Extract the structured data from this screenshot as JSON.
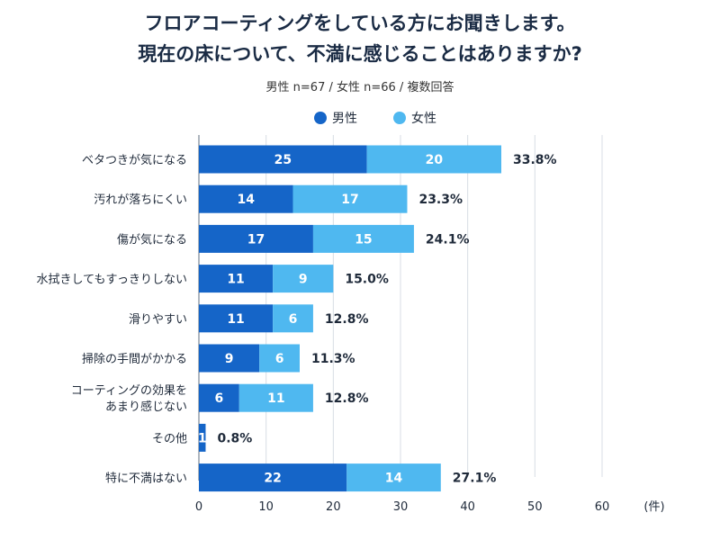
{
  "title_line1": "フロアコーティングをしている方にお聞きします。",
  "title_line2": "現在の床について、不満に感じることはありますか?",
  "subtitle": "男性 n=67 / 女性 n=66 / 複数回答",
  "colors": {
    "male": "#1565c8",
    "female": "#4fb8f0",
    "grid": "#d8dde4",
    "text": "#1f2a3a"
  },
  "chart_data": {
    "type": "bar",
    "orientation": "horizontal",
    "stacked": true,
    "categories": [
      [
        "ベタつきが気になる"
      ],
      [
        "汚れが落ちにくい"
      ],
      [
        "傷が気になる"
      ],
      [
        "水拭きしてもすっきりしない"
      ],
      [
        "滑りやすい"
      ],
      [
        "掃除の手間がかかる"
      ],
      [
        "コーティングの効果を",
        "あまり感じない"
      ],
      [
        "その他"
      ],
      [
        "特に不満はない"
      ]
    ],
    "series": [
      {
        "name": "男性",
        "values": [
          25,
          14,
          17,
          11,
          11,
          9,
          6,
          1,
          22
        ]
      },
      {
        "name": "女性",
        "values": [
          20,
          17,
          15,
          9,
          6,
          6,
          11,
          0,
          14
        ]
      }
    ],
    "percent_labels": [
      "33.8%",
      "23.3%",
      "24.1%",
      "15.0%",
      "12.8%",
      "11.3%",
      "12.8%",
      "0.8%",
      "27.1%"
    ],
    "xlim": [
      0,
      60
    ],
    "xticks": [
      0,
      10,
      20,
      30,
      40,
      50,
      60
    ],
    "xunit": "(件)",
    "legend": "top-center",
    "grid": true
  }
}
